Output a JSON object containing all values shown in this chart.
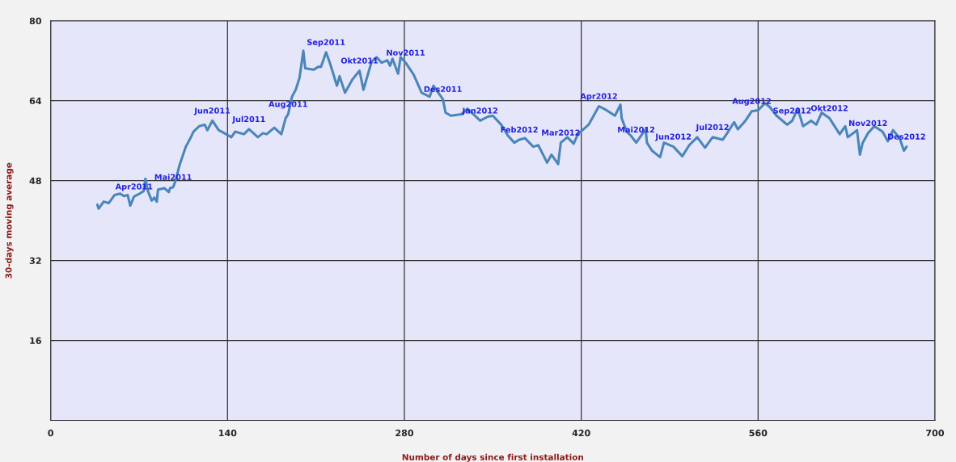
{
  "chart_data": {
    "type": "line",
    "xlabel": "Number of days since first installation",
    "ylabel": "30-days moving average",
    "xlim": [
      0,
      700
    ],
    "xticks": [
      0,
      140,
      280,
      420,
      560,
      700
    ],
    "ylim": [
      0,
      80
    ],
    "yticks": [
      16,
      32,
      48,
      64,
      80
    ],
    "grid": true,
    "marker": "none",
    "line_style": "solid",
    "series": [
      {
        "color": "#4a86b8",
        "x": [
          36.9,
          38,
          42,
          46,
          50.5,
          55,
          58,
          61,
          63,
          66,
          70.4,
          73.6,
          75,
          77,
          80,
          82,
          84,
          85,
          90,
          93.5,
          94.5,
          97,
          99,
          102,
          107,
          111,
          113,
          117.6,
          122,
          124,
          128,
          133,
          137.5,
          143,
          146,
          153,
          157,
          164,
          168,
          171,
          177,
          182.6,
          186,
          188,
          191,
          194,
          197,
          200,
          201.5,
          208,
          212,
          214,
          218,
          221,
          226.6,
          228.7,
          233,
          239,
          244.5,
          247.6,
          254,
          258,
          262,
          266.5,
          268.6,
          270.6,
          275,
          277,
          281,
          287.4,
          293.7,
          300,
          303,
          310.5,
          312.6,
          316.8,
          325,
          330,
          340,
          346,
          350,
          356.6,
          362,
          367,
          371,
          375.5,
          382,
          386,
          393,
          396.4,
          401.7,
          403.8,
          409,
          414,
          417.4,
          425.8,
          434,
          440,
          446.7,
          451,
          452,
          456,
          459.3,
          463.5,
          471,
          472,
          476,
          482.4,
          485.5,
          493,
          500,
          505.5,
          511.8,
          518,
          524,
          532,
          535,
          541,
          544,
          550,
          555,
          560,
          565.5,
          569.4,
          574.6,
          583,
          587,
          591.4,
          595.6,
          602,
          606,
          610.3,
          616.5,
          624.6,
          629,
          631,
          638.3,
          640.6,
          642.8,
          647,
          652,
          658.5,
          662.7,
          666.8,
          672,
          675.4,
          677.5
        ],
        "values": [
          43.2,
          42.4,
          43.8,
          43.5,
          45.1,
          45.4,
          44.9,
          45.1,
          43.0,
          44.8,
          45.4,
          45.9,
          48.4,
          45.9,
          44.0,
          44.6,
          43.8,
          46.2,
          46.5,
          45.7,
          46.5,
          46.7,
          48.1,
          51.1,
          54.8,
          56.7,
          57.8,
          58.9,
          59.2,
          58.1,
          60.0,
          58.1,
          57.5,
          56.7,
          57.8,
          57.3,
          58.3,
          56.7,
          57.5,
          57.3,
          58.6,
          57.3,
          60.5,
          61.3,
          64.8,
          66.2,
          68.6,
          74.0,
          70.5,
          70.2,
          70.8,
          70.8,
          73.7,
          71.6,
          67.0,
          68.9,
          65.6,
          68.3,
          70.0,
          66.2,
          71.8,
          72.7,
          71.6,
          72.1,
          71.0,
          72.4,
          69.4,
          72.7,
          71.6,
          69.2,
          65.6,
          64.8,
          67.0,
          64.3,
          61.6,
          61.0,
          61.3,
          62.4,
          60.0,
          60.8,
          61.0,
          59.2,
          57.0,
          55.6,
          56.2,
          56.5,
          54.8,
          55.1,
          51.6,
          53.2,
          51.3,
          55.6,
          56.7,
          55.4,
          57.3,
          59.2,
          62.9,
          62.1,
          61.0,
          63.2,
          60.5,
          57.8,
          57.0,
          55.6,
          58.3,
          55.6,
          54.0,
          52.7,
          55.6,
          54.8,
          52.9,
          55.1,
          56.7,
          54.6,
          56.7,
          56.2,
          57.3,
          59.7,
          58.3,
          60.0,
          61.9,
          62.1,
          63.5,
          62.7,
          61.0,
          59.2,
          60.0,
          62.4,
          58.9,
          60.0,
          59.2,
          61.6,
          60.5,
          57.3,
          58.9,
          56.7,
          58.1,
          53.2,
          55.6,
          57.5,
          58.9,
          57.8,
          55.9,
          58.1,
          56.5,
          54.0,
          54.8
        ]
      }
    ],
    "annotations": [
      {
        "text": "Apr2011",
        "x": 66,
        "y": 44.8
      },
      {
        "text": "Mai2011",
        "x": 97,
        "y": 46.7
      },
      {
        "text": "Jun2011",
        "x": 128,
        "y": 60.0
      },
      {
        "text": "Jul2011",
        "x": 157,
        "y": 58.3
      },
      {
        "text": "Aug2011",
        "x": 188,
        "y": 61.3
      },
      {
        "text": "Sep2011",
        "x": 218,
        "y": 73.7
      },
      {
        "text": "Okt2011",
        "x": 244.5,
        "y": 70.0
      },
      {
        "text": "Nov2011",
        "x": 281,
        "y": 71.6
      },
      {
        "text": "Des2011",
        "x": 310.5,
        "y": 64.3
      },
      {
        "text": "Jan2012",
        "x": 340,
        "y": 60.0
      },
      {
        "text": "Feb2012",
        "x": 371,
        "y": 56.2
      },
      {
        "text": "Mar2012",
        "x": 403.8,
        "y": 55.6
      },
      {
        "text": "Apr2012",
        "x": 434,
        "y": 62.9
      },
      {
        "text": "Mai2012",
        "x": 463.5,
        "y": 56.2
      },
      {
        "text": "Jun2012",
        "x": 493,
        "y": 54.8
      },
      {
        "text": "Jul2012",
        "x": 524,
        "y": 56.7
      },
      {
        "text": "Aug2012",
        "x": 555,
        "y": 61.9
      },
      {
        "text": "Sep2012",
        "x": 587,
        "y": 60.0
      },
      {
        "text": "Okt2012",
        "x": 616.5,
        "y": 60.5
      },
      {
        "text": "Nov2012",
        "x": 647,
        "y": 57.5
      },
      {
        "text": "Des2012",
        "x": 677.5,
        "y": 54.8
      }
    ]
  }
}
